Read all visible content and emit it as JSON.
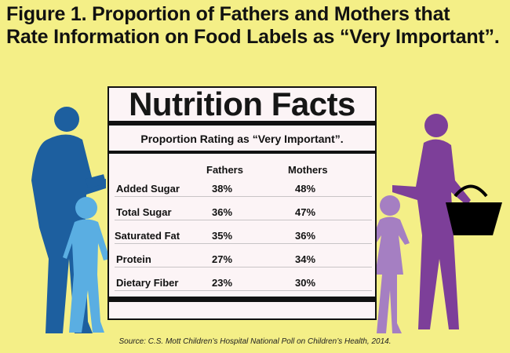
{
  "title_line1": "Figure 1. Proportion of Fathers and Mothers that",
  "title_line2": "Rate Information on Food Labels as “Very Important”.",
  "label_heading": "Nutrition Facts",
  "subtitle": "Proportion Rating as “Very Important”.",
  "source": "Source: C.S. Mott Children’s Hospital National Poll on Children’s Health, 2014.",
  "colors": {
    "background": "#f4ef87",
    "father": "#1d5f9f",
    "son": "#5aaee2",
    "mother": "#7d3f99",
    "daughter": "#a57fc2",
    "basket": "#000000"
  },
  "chart_data": {
    "type": "table",
    "columns": [
      "Fathers",
      "Mothers"
    ],
    "rows": [
      {
        "label": "Added Sugar",
        "values": [
          "38%",
          "48%"
        ]
      },
      {
        "label": "Total Sugar",
        "values": [
          "36%",
          "47%"
        ]
      },
      {
        "label": "Saturated Fat",
        "values": [
          "35%",
          "36%"
        ]
      },
      {
        "label": "Protein",
        "values": [
          "27%",
          "34%"
        ]
      },
      {
        "label": "Dietary Fiber",
        "values": [
          "23%",
          "30%"
        ]
      }
    ]
  }
}
